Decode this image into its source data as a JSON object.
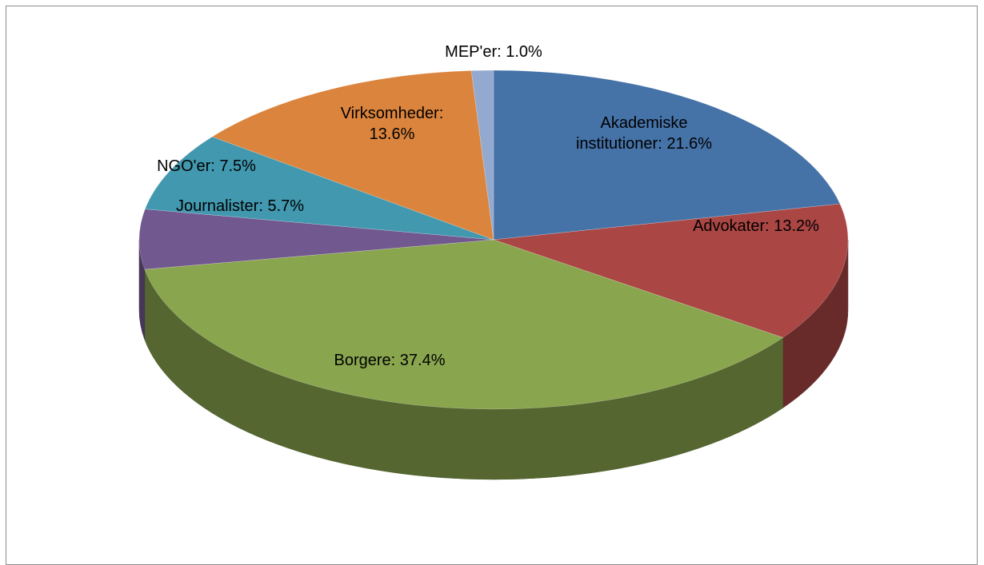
{
  "chart_data": {
    "type": "pie",
    "values": [
      21.6,
      13.2,
      37.4,
      5.7,
      7.5,
      13.6,
      1.0
    ],
    "value_labels": [
      "Akademiske institutioner: 21.6%",
      "Advokater: 13.2%",
      "Borgere: 37.4%",
      "Journalister: 5.7%",
      "NGO'er: 7.5%",
      "Virksomheder: 13.6%",
      "MEP'er: 1.0%"
    ],
    "colors": [
      "#4572a7",
      "#aa4643",
      "#89a54e",
      "#71588f",
      "#4198af",
      "#db843d",
      "#93a9cf"
    ]
  }
}
